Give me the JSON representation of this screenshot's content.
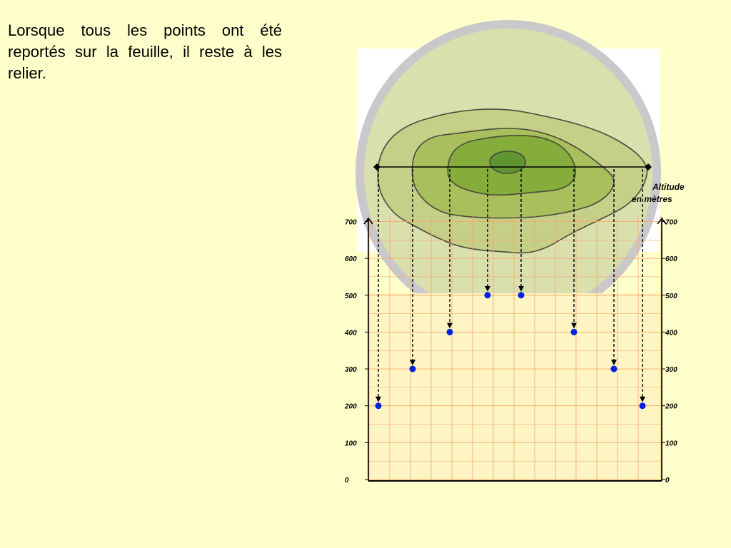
{
  "caption": "Lorsque tous les points ont été reportés sur la feuille, il reste à les relier.",
  "axis": {
    "title_line1": "Altitude",
    "title_line2": "en mètres",
    "ticks": [
      0,
      100,
      200,
      300,
      400,
      500,
      600,
      700
    ]
  },
  "colors": {
    "background": "#ffffcc",
    "grid_fill": "#fff5c4",
    "grid_line": "#f5a96a",
    "outer_disc": "#c9c9cb",
    "inner_disc": "#dadfae",
    "contour_200": "#c5cf88",
    "contour_300": "#a9be5c",
    "contour_400": "#84ad3b",
    "contour_500": "#5e9531",
    "contour_stroke": "#4a4a3a",
    "point": "#0020e0"
  },
  "profile_points": [
    {
      "label": "point-1",
      "altitude": 200
    },
    {
      "label": "point-2",
      "altitude": 300
    },
    {
      "label": "point-3",
      "altitude": 400
    },
    {
      "label": "point-4",
      "altitude": 500
    },
    {
      "label": "point-5",
      "altitude": 500
    },
    {
      "label": "point-6",
      "altitude": 400
    },
    {
      "label": "point-7",
      "altitude": 300
    },
    {
      "label": "point-8",
      "altitude": 200
    }
  ]
}
